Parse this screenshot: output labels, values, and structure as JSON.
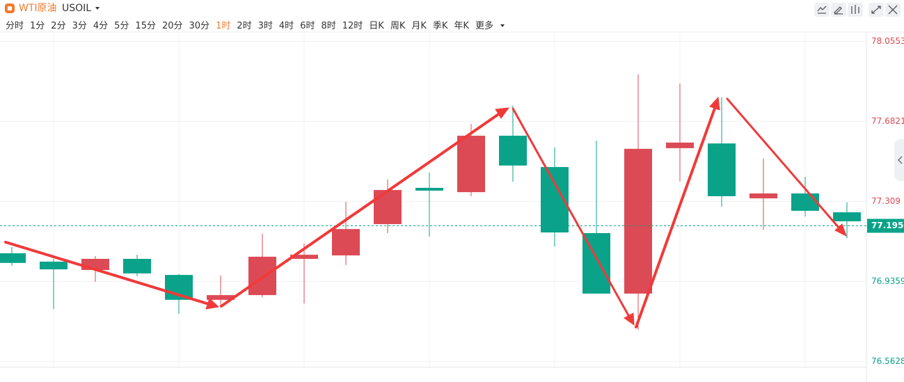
{
  "header": {
    "symbol_name": "WTI原油",
    "symbol_code": "USOIL",
    "timeframes": [
      "分时",
      "1分",
      "2分",
      "3分",
      "4分",
      "5分",
      "15分",
      "20分",
      "30分",
      "1时",
      "2时",
      "3时",
      "4时",
      "6时",
      "8时",
      "12时",
      "日K",
      "周K",
      "月K",
      "季K",
      "年K",
      "更多"
    ],
    "active_timeframe": "1时"
  },
  "chart_data": {
    "type": "candlestick",
    "categories": [
      null,
      null,
      null,
      null,
      null,
      null,
      null,
      null,
      null,
      null,
      null,
      null,
      null,
      null,
      null,
      null,
      null,
      null,
      null,
      null,
      null
    ],
    "open": [
      77.067,
      77.028,
      76.989,
      77.041,
      76.966,
      76.85,
      76.872,
      77.041,
      77.057,
      77.203,
      77.372,
      77.352,
      77.615,
      77.469,
      77.161,
      76.879,
      77.557,
      77.579,
      77.323,
      77.346,
      77.258
    ],
    "high": [
      77.096,
      77.041,
      77.054,
      77.06,
      76.97,
      76.963,
      77.158,
      77.112,
      77.307,
      77.411,
      77.443,
      77.67,
      77.755,
      77.56,
      77.592,
      77.901,
      77.858,
      77.794,
      77.508,
      77.424,
      77.304
    ],
    "low": [
      77.009,
      76.807,
      76.934,
      76.96,
      76.785,
      76.817,
      76.862,
      76.833,
      77.012,
      77.161,
      77.145,
      77.333,
      77.401,
      77.099,
      76.879,
      76.71,
      77.401,
      77.284,
      77.177,
      77.239,
      77.138
    ],
    "close": [
      77.022,
      76.992,
      77.041,
      76.973,
      76.85,
      76.872,
      77.051,
      77.06,
      77.18,
      77.362,
      77.359,
      77.615,
      77.476,
      77.164,
      76.879,
      77.554,
      77.583,
      77.333,
      77.346,
      77.265,
      77.216
    ],
    "up_color": "#dc4a55",
    "down_color": "#0aa38a",
    "ylim": [
      76.535,
      78.105
    ],
    "yticks": [
      78.0553,
      77.6821,
      77.309,
      76.9359,
      76.5628
    ],
    "last_price": {
      "value": 77.195,
      "label": "77.1950"
    },
    "grid": true
  }
}
